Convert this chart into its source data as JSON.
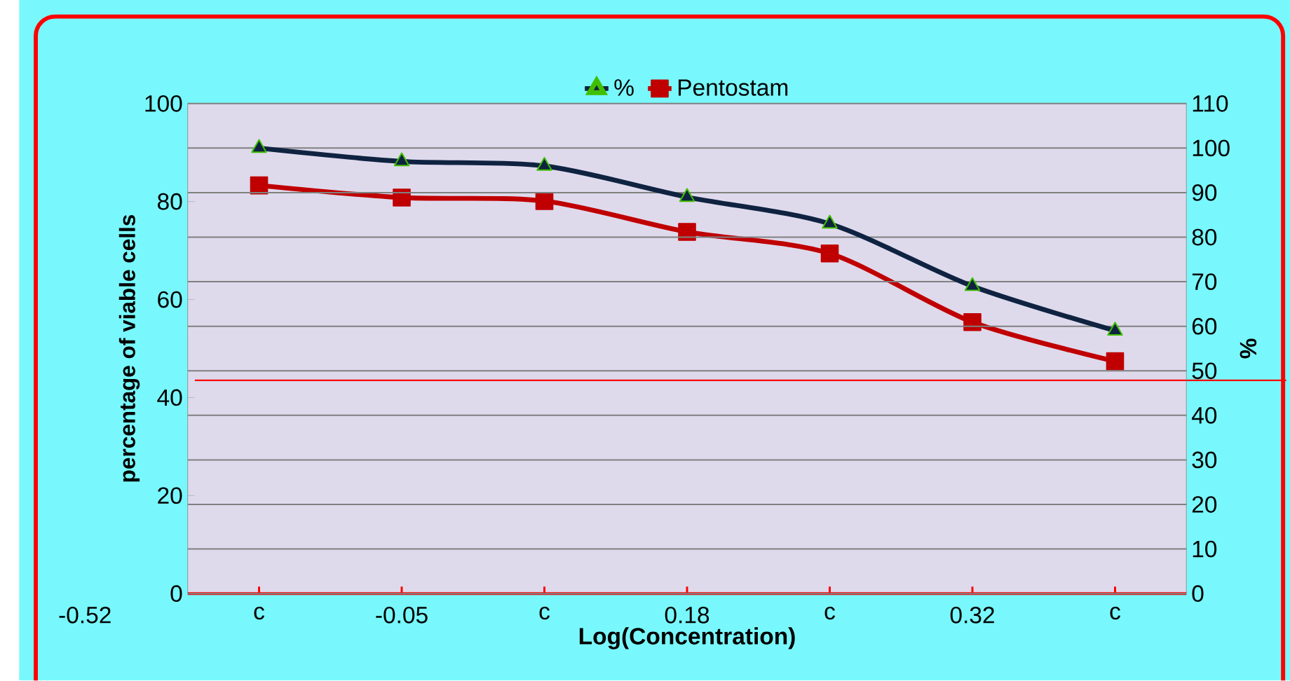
{
  "chart_data": {
    "type": "line",
    "xlabel": "Log(Concentration)",
    "ylabel": "percentage of viable cells",
    "y2label": "%",
    "categories": [
      "c",
      "-0.05",
      "c",
      "0.18",
      "c",
      "0.32",
      "c"
    ],
    "series": [
      {
        "name": "%",
        "color": "#0f2341",
        "axis": "y2",
        "marker": "triangle",
        "values": [
          100,
          97,
          96,
          89,
          83,
          69,
          59
        ]
      },
      {
        "name": "Pentostam",
        "color": "#c00000",
        "marker": "square",
        "values": [
          83.3,
          80.8,
          80.1,
          73.8,
          69.4,
          55.4,
          47.4
        ]
      }
    ],
    "ylim": [
      0,
      100
    ],
    "yticks": [
      0,
      20,
      40,
      60,
      80,
      100
    ],
    "y2lim": [
      0,
      110
    ],
    "y2ticks": [
      0,
      10,
      20,
      30,
      40,
      50,
      60,
      70,
      80,
      90,
      100,
      110
    ],
    "grid": "y",
    "legend": "top",
    "ref_lines": [
      {
        "axis": "y",
        "value": 43.5,
        "color": "#ff0000"
      }
    ],
    "annotations": [
      "-0.52"
    ]
  }
}
